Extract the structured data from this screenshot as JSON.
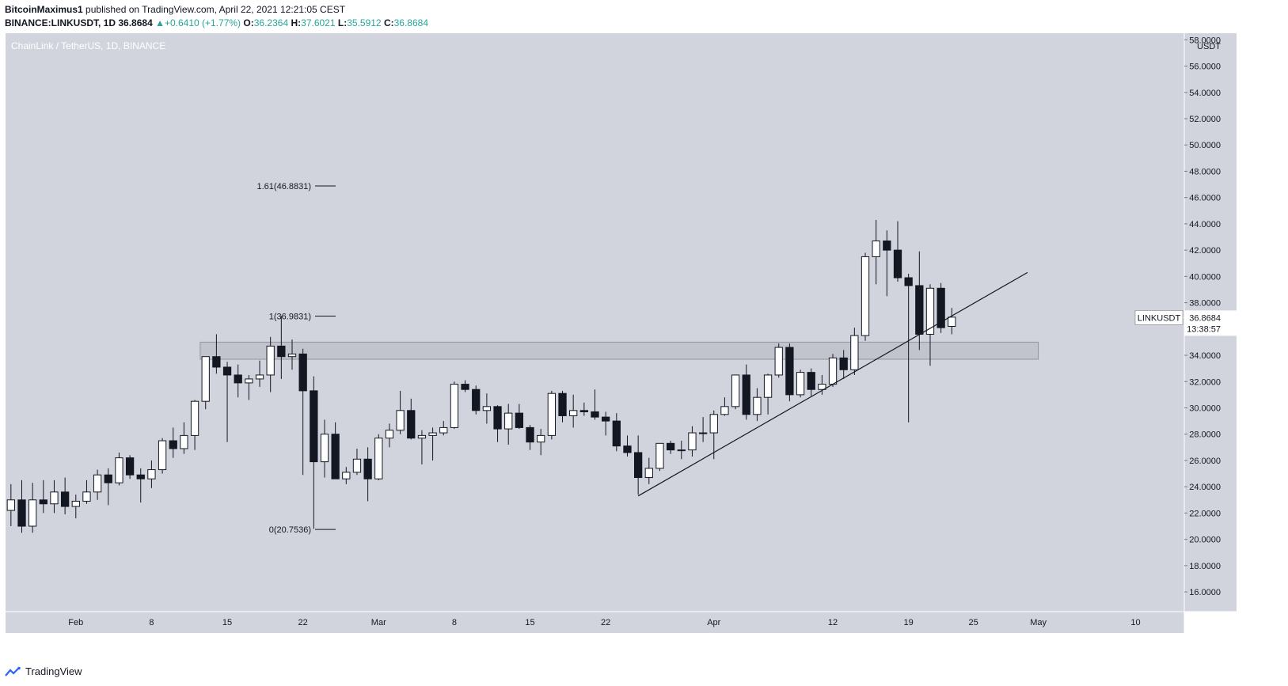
{
  "header": {
    "publisher": "BitcoinMaximus1",
    "published_text": "published on TradingView.com, April 22, 2021 12:21:05 CEST",
    "symbol": "BINANCE:LINKUSDT, 1D",
    "last": "36.8684",
    "change": "+0.6410 (+1.77%)",
    "o_label": "O:",
    "o_value": "36.2364",
    "h_label": "H:",
    "h_value": "37.6021",
    "l_label": "L:",
    "l_value": "35.5912",
    "c_label": "C:",
    "c_value": "36.8684"
  },
  "footer": {
    "brand": "TradingView"
  },
  "colors": {
    "pane_bg": "#d1d4dc",
    "candle_up": "#ffffff",
    "candle_down": "#131722",
    "wick": "#131722",
    "zone_fill": "#c0c3cb",
    "zone_stroke": "#8c8f96",
    "axis_text": "#131722"
  },
  "chart_data": {
    "type": "candlestick",
    "title": "ChainLink / TetherUS, 1D, BINANCE",
    "y_unit": "USDT",
    "ylim": [
      14.5,
      58.5
    ],
    "y_ticks": [
      "16.0000",
      "18.0000",
      "20.0000",
      "22.0000",
      "24.0000",
      "26.0000",
      "28.0000",
      "30.0000",
      "32.0000",
      "34.0000",
      "36.0000",
      "38.0000",
      "40.0000",
      "42.0000",
      "44.0000",
      "46.0000",
      "48.0000",
      "50.0000",
      "52.0000",
      "54.0000",
      "56.0000",
      "58.0000"
    ],
    "y_tick_values": [
      16,
      18,
      20,
      22,
      24,
      26,
      28,
      30,
      32,
      34,
      36,
      38,
      40,
      42,
      44,
      46,
      48,
      50,
      52,
      54,
      56,
      58
    ],
    "x_range": [
      "2021-01-26",
      "2021-05-14"
    ],
    "x_ticks": [
      {
        "label": "Feb",
        "date": "2021-02-01"
      },
      {
        "label": "8",
        "date": "2021-02-08"
      },
      {
        "label": "15",
        "date": "2021-02-15"
      },
      {
        "label": "22",
        "date": "2021-02-22"
      },
      {
        "label": "Mar",
        "date": "2021-03-01"
      },
      {
        "label": "8",
        "date": "2021-03-08"
      },
      {
        "label": "15",
        "date": "2021-03-15"
      },
      {
        "label": "22",
        "date": "2021-03-22"
      },
      {
        "label": "Apr",
        "date": "2021-04-01"
      },
      {
        "label": "12",
        "date": "2021-04-12"
      },
      {
        "label": "19",
        "date": "2021-04-19"
      },
      {
        "label": "25",
        "date": "2021-04-25"
      },
      {
        "label": "May",
        "date": "2021-05-01"
      },
      {
        "label": "10",
        "date": "2021-05-10"
      }
    ],
    "candles": [
      {
        "date": "2021-01-26",
        "o": 22.2,
        "h": 24.2,
        "l": 21.0,
        "c": 23.0
      },
      {
        "date": "2021-01-27",
        "o": 23.0,
        "h": 24.5,
        "l": 20.5,
        "c": 21.0
      },
      {
        "date": "2021-01-28",
        "o": 21.0,
        "h": 24.3,
        "l": 20.5,
        "c": 23.0
      },
      {
        "date": "2021-01-29",
        "o": 23.0,
        "h": 24.5,
        "l": 22.0,
        "c": 22.7
      },
      {
        "date": "2021-01-30",
        "o": 22.7,
        "h": 24.5,
        "l": 22.0,
        "c": 23.6
      },
      {
        "date": "2021-01-31",
        "o": 23.6,
        "h": 24.7,
        "l": 21.9,
        "c": 22.5
      },
      {
        "date": "2021-02-01",
        "o": 22.5,
        "h": 23.4,
        "l": 21.6,
        "c": 22.9
      },
      {
        "date": "2021-02-02",
        "o": 22.9,
        "h": 24.5,
        "l": 22.7,
        "c": 23.6
      },
      {
        "date": "2021-02-03",
        "o": 23.6,
        "h": 25.3,
        "l": 23.0,
        "c": 24.9
      },
      {
        "date": "2021-02-04",
        "o": 24.9,
        "h": 25.4,
        "l": 22.6,
        "c": 24.3
      },
      {
        "date": "2021-02-05",
        "o": 24.3,
        "h": 26.6,
        "l": 24.1,
        "c": 26.2
      },
      {
        "date": "2021-02-06",
        "o": 26.2,
        "h": 26.4,
        "l": 24.6,
        "c": 24.9
      },
      {
        "date": "2021-02-07",
        "o": 24.9,
        "h": 25.4,
        "l": 22.8,
        "c": 24.6
      },
      {
        "date": "2021-02-08",
        "o": 24.6,
        "h": 26.0,
        "l": 23.9,
        "c": 25.3
      },
      {
        "date": "2021-02-09",
        "o": 25.3,
        "h": 27.7,
        "l": 25.0,
        "c": 27.5
      },
      {
        "date": "2021-02-10",
        "o": 27.5,
        "h": 28.5,
        "l": 26.2,
        "c": 26.9
      },
      {
        "date": "2021-02-11",
        "o": 26.9,
        "h": 28.9,
        "l": 26.5,
        "c": 27.9
      },
      {
        "date": "2021-02-12",
        "o": 27.9,
        "h": 30.6,
        "l": 26.8,
        "c": 30.5
      },
      {
        "date": "2021-02-13",
        "o": 30.5,
        "h": 33.9,
        "l": 29.9,
        "c": 33.9
      },
      {
        "date": "2021-02-14",
        "o": 33.9,
        "h": 35.6,
        "l": 32.6,
        "c": 33.1
      },
      {
        "date": "2021-02-15",
        "o": 33.1,
        "h": 33.5,
        "l": 27.4,
        "c": 32.5
      },
      {
        "date": "2021-02-16",
        "o": 32.5,
        "h": 33.3,
        "l": 30.8,
        "c": 31.9
      },
      {
        "date": "2021-02-17",
        "o": 31.9,
        "h": 32.5,
        "l": 30.6,
        "c": 32.2
      },
      {
        "date": "2021-02-18",
        "o": 32.2,
        "h": 33.6,
        "l": 31.6,
        "c": 32.5
      },
      {
        "date": "2021-02-19",
        "o": 32.5,
        "h": 35.4,
        "l": 31.2,
        "c": 34.7
      },
      {
        "date": "2021-02-20",
        "o": 34.7,
        "h": 37.0,
        "l": 32.2,
        "c": 33.9
      },
      {
        "date": "2021-02-21",
        "o": 33.9,
        "h": 35.2,
        "l": 32.9,
        "c": 34.1
      },
      {
        "date": "2021-02-22",
        "o": 34.1,
        "h": 34.5,
        "l": 24.9,
        "c": 31.3
      },
      {
        "date": "2021-02-23",
        "o": 31.3,
        "h": 32.4,
        "l": 20.8,
        "c": 25.9
      },
      {
        "date": "2021-02-24",
        "o": 25.9,
        "h": 29.1,
        "l": 24.7,
        "c": 28.0
      },
      {
        "date": "2021-02-25",
        "o": 28.0,
        "h": 28.9,
        "l": 24.6,
        "c": 24.6
      },
      {
        "date": "2021-02-26",
        "o": 24.6,
        "h": 25.5,
        "l": 24.2,
        "c": 25.1
      },
      {
        "date": "2021-02-27",
        "o": 25.1,
        "h": 26.9,
        "l": 24.9,
        "c": 26.1
      },
      {
        "date": "2021-02-28",
        "o": 26.1,
        "h": 27.0,
        "l": 22.9,
        "c": 24.6
      },
      {
        "date": "2021-03-01",
        "o": 24.6,
        "h": 28.0,
        "l": 24.5,
        "c": 27.7
      },
      {
        "date": "2021-03-02",
        "o": 27.7,
        "h": 28.8,
        "l": 27.0,
        "c": 28.3
      },
      {
        "date": "2021-03-03",
        "o": 28.3,
        "h": 31.3,
        "l": 28.0,
        "c": 29.8
      },
      {
        "date": "2021-03-04",
        "o": 29.8,
        "h": 30.7,
        "l": 27.6,
        "c": 27.7
      },
      {
        "date": "2021-03-05",
        "o": 27.7,
        "h": 28.3,
        "l": 25.7,
        "c": 27.9
      },
      {
        "date": "2021-03-06",
        "o": 27.9,
        "h": 28.5,
        "l": 26.0,
        "c": 28.1
      },
      {
        "date": "2021-03-07",
        "o": 28.1,
        "h": 29.0,
        "l": 27.9,
        "c": 28.5
      },
      {
        "date": "2021-03-08",
        "o": 28.5,
        "h": 32.0,
        "l": 28.4,
        "c": 31.8
      },
      {
        "date": "2021-03-09",
        "o": 31.8,
        "h": 32.1,
        "l": 31.2,
        "c": 31.4
      },
      {
        "date": "2021-03-10",
        "o": 31.4,
        "h": 31.7,
        "l": 29.5,
        "c": 29.8
      },
      {
        "date": "2021-03-11",
        "o": 29.8,
        "h": 31.1,
        "l": 28.8,
        "c": 30.1
      },
      {
        "date": "2021-03-12",
        "o": 30.1,
        "h": 30.2,
        "l": 27.4,
        "c": 28.4
      },
      {
        "date": "2021-03-13",
        "o": 28.4,
        "h": 30.3,
        "l": 27.2,
        "c": 29.6
      },
      {
        "date": "2021-03-14",
        "o": 29.6,
        "h": 30.3,
        "l": 28.4,
        "c": 28.5
      },
      {
        "date": "2021-03-15",
        "o": 28.5,
        "h": 28.7,
        "l": 26.8,
        "c": 27.4
      },
      {
        "date": "2021-03-16",
        "o": 27.4,
        "h": 28.4,
        "l": 26.4,
        "c": 27.9
      },
      {
        "date": "2021-03-17",
        "o": 27.9,
        "h": 31.3,
        "l": 27.6,
        "c": 31.1
      },
      {
        "date": "2021-03-18",
        "o": 31.1,
        "h": 31.3,
        "l": 28.9,
        "c": 29.4
      },
      {
        "date": "2021-03-19",
        "o": 29.4,
        "h": 31.0,
        "l": 28.5,
        "c": 29.8
      },
      {
        "date": "2021-03-20",
        "o": 29.8,
        "h": 30.4,
        "l": 29.4,
        "c": 29.7
      },
      {
        "date": "2021-03-21",
        "o": 29.7,
        "h": 31.4,
        "l": 29.1,
        "c": 29.3
      },
      {
        "date": "2021-03-22",
        "o": 29.3,
        "h": 29.7,
        "l": 27.9,
        "c": 29.0
      },
      {
        "date": "2021-03-23",
        "o": 29.0,
        "h": 29.6,
        "l": 26.7,
        "c": 27.1
      },
      {
        "date": "2021-03-24",
        "o": 27.1,
        "h": 27.9,
        "l": 26.3,
        "c": 26.6
      },
      {
        "date": "2021-03-25",
        "o": 26.6,
        "h": 27.9,
        "l": 23.4,
        "c": 24.7
      },
      {
        "date": "2021-03-26",
        "o": 24.7,
        "h": 26.2,
        "l": 24.2,
        "c": 25.4
      },
      {
        "date": "2021-03-27",
        "o": 25.4,
        "h": 27.3,
        "l": 25.2,
        "c": 27.3
      },
      {
        "date": "2021-03-28",
        "o": 27.3,
        "h": 27.5,
        "l": 26.5,
        "c": 26.8
      },
      {
        "date": "2021-03-29",
        "o": 26.8,
        "h": 27.5,
        "l": 26.1,
        "c": 26.8
      },
      {
        "date": "2021-03-30",
        "o": 26.8,
        "h": 28.6,
        "l": 26.3,
        "c": 28.1
      },
      {
        "date": "2021-03-31",
        "o": 28.1,
        "h": 29.3,
        "l": 27.4,
        "c": 28.1
      },
      {
        "date": "2021-04-01",
        "o": 28.1,
        "h": 29.8,
        "l": 26.1,
        "c": 29.5
      },
      {
        "date": "2021-04-02",
        "o": 29.5,
        "h": 30.8,
        "l": 29.4,
        "c": 30.1
      },
      {
        "date": "2021-04-03",
        "o": 30.1,
        "h": 32.5,
        "l": 29.9,
        "c": 32.5
      },
      {
        "date": "2021-04-04",
        "o": 32.5,
        "h": 33.3,
        "l": 29.1,
        "c": 29.5
      },
      {
        "date": "2021-04-05",
        "o": 29.5,
        "h": 31.5,
        "l": 29.0,
        "c": 30.8
      },
      {
        "date": "2021-04-06",
        "o": 30.8,
        "h": 32.6,
        "l": 29.5,
        "c": 32.5
      },
      {
        "date": "2021-04-07",
        "o": 32.5,
        "h": 34.9,
        "l": 32.3,
        "c": 34.6
      },
      {
        "date": "2021-04-08",
        "o": 34.6,
        "h": 34.9,
        "l": 30.5,
        "c": 31.0
      },
      {
        "date": "2021-04-09",
        "o": 31.0,
        "h": 32.9,
        "l": 30.8,
        "c": 32.7
      },
      {
        "date": "2021-04-10",
        "o": 32.7,
        "h": 33.0,
        "l": 30.9,
        "c": 31.4
      },
      {
        "date": "2021-04-11",
        "o": 31.4,
        "h": 32.5,
        "l": 31.0,
        "c": 31.8
      },
      {
        "date": "2021-04-12",
        "o": 31.8,
        "h": 34.1,
        "l": 31.6,
        "c": 33.8
      },
      {
        "date": "2021-04-13",
        "o": 33.8,
        "h": 34.4,
        "l": 32.2,
        "c": 32.9
      },
      {
        "date": "2021-04-14",
        "o": 32.9,
        "h": 36.1,
        "l": 32.5,
        "c": 35.5
      },
      {
        "date": "2021-04-15",
        "o": 35.5,
        "h": 41.8,
        "l": 35.1,
        "c": 41.5
      },
      {
        "date": "2021-04-16",
        "o": 41.5,
        "h": 44.3,
        "l": 39.4,
        "c": 42.7
      },
      {
        "date": "2021-04-17",
        "o": 42.7,
        "h": 43.5,
        "l": 38.5,
        "c": 42.0
      },
      {
        "date": "2021-04-18",
        "o": 42.0,
        "h": 44.2,
        "l": 39.6,
        "c": 39.9
      },
      {
        "date": "2021-04-19",
        "o": 39.9,
        "h": 40.2,
        "l": 28.9,
        "c": 39.3
      },
      {
        "date": "2021-04-20",
        "o": 39.3,
        "h": 41.9,
        "l": 34.4,
        "c": 35.6
      },
      {
        "date": "2021-04-21",
        "o": 35.6,
        "h": 39.4,
        "l": 33.2,
        "c": 39.1
      },
      {
        "date": "2021-04-22",
        "o": 39.1,
        "h": 39.5,
        "l": 35.7,
        "c": 36.1
      },
      {
        "date": "2021-04-23",
        "o": 36.2,
        "h": 37.6,
        "l": 35.6,
        "c": 36.9
      }
    ],
    "annotations": {
      "price_label": {
        "symbol": "LINKUSDT",
        "value": "36.8684",
        "countdown": "13:38:57",
        "price": 36.8684
      },
      "fib_levels": [
        {
          "label": "1.61(46.8831)",
          "value": 46.8831
        },
        {
          "label": "1(36.9831)",
          "value": 36.9831
        },
        {
          "label": "0(20.7536)",
          "value": 20.7536
        }
      ],
      "support_zone": {
        "from_date": "2021-02-13",
        "to_date": "2021-05-01",
        "low": 33.7,
        "high": 35.0
      },
      "trendline": {
        "from_date": "2021-03-25",
        "from_value": 23.3,
        "to_date": "2021-04-30",
        "to_value": 40.3
      }
    }
  }
}
